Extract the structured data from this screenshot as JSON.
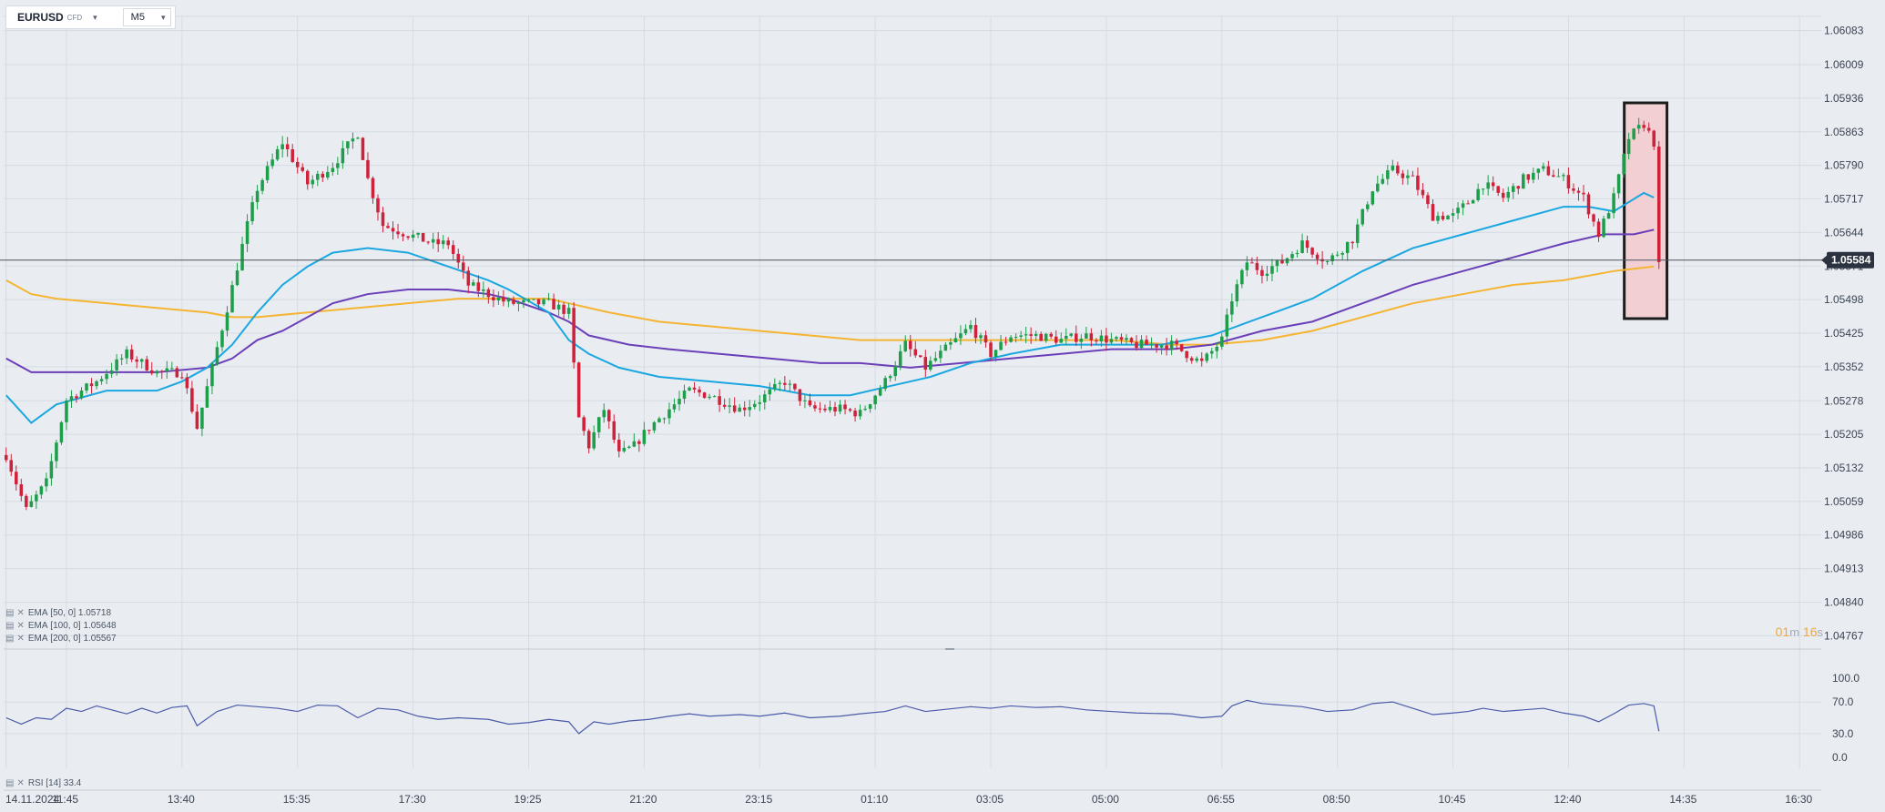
{
  "header": {
    "symbol": "EURUSD",
    "instrument_type": "CFD",
    "timeframe": "M5"
  },
  "indicators": [
    {
      "label": "EMA",
      "params": "[50, 0]",
      "value": "1.05718",
      "color": "#1aa7e0"
    },
    {
      "label": "EMA",
      "params": "[100, 0]",
      "value": "1.05648",
      "color": "#6b3fb8"
    },
    {
      "label": "EMA",
      "params": "[200, 0]",
      "value": "1.05567",
      "color": "#f5b431"
    }
  ],
  "rsi": {
    "label": "RSI",
    "params": "[14]",
    "value": "33.4",
    "color": "#4a5aa8"
  },
  "countdown": {
    "minutes": "01",
    "min_unit": "m",
    "seconds": "16",
    "sec_unit": "s"
  },
  "colors": {
    "up": "#1e9e4b",
    "down": "#d0213a",
    "highlight_fill": "#f1cfd2",
    "price_tag": "#2b3340"
  },
  "chart_data": {
    "type": "candlestick",
    "ylim": [
      1.0474,
      1.0611
    ],
    "price_ticks": [
      "1.06083",
      "1.06009",
      "1.05936",
      "1.05863",
      "1.05790",
      "1.05717",
      "1.05644",
      "1.05571",
      "1.05498",
      "1.05425",
      "1.05352",
      "1.05278",
      "1.05205",
      "1.05132",
      "1.05059",
      "1.04986",
      "1.04913",
      "1.04840",
      "1.04767"
    ],
    "current_price": "1.05584",
    "x_ticks": [
      {
        "label": "14.11.2024",
        "bar": 0
      },
      {
        "label": "11:45",
        "bar": 12
      },
      {
        "label": "13:40",
        "bar": 35
      },
      {
        "label": "15:35",
        "bar": 58
      },
      {
        "label": "17:30",
        "bar": 81
      },
      {
        "label": "19:25",
        "bar": 104
      },
      {
        "label": "21:20",
        "bar": 127
      },
      {
        "label": "23:15",
        "bar": 150
      },
      {
        "label": "01:10",
        "bar": 173
      },
      {
        "label": "03:05",
        "bar": 196
      },
      {
        "label": "05:00",
        "bar": 219
      },
      {
        "label": "06:55",
        "bar": 242
      },
      {
        "label": "08:50",
        "bar": 265
      },
      {
        "label": "10:45",
        "bar": 288
      },
      {
        "label": "12:40",
        "bar": 311
      },
      {
        "label": "14:35",
        "bar": 334
      },
      {
        "label": "16:30",
        "bar": 357
      }
    ],
    "total_slots": 360,
    "close_path": [
      [
        0,
        1.0516
      ],
      [
        4,
        1.0504
      ],
      [
        8,
        1.051
      ],
      [
        12,
        1.0528
      ],
      [
        18,
        1.0532
      ],
      [
        24,
        1.0538
      ],
      [
        30,
        1.0534
      ],
      [
        35,
        1.0534
      ],
      [
        38,
        1.0522
      ],
      [
        44,
        1.0548
      ],
      [
        48,
        1.0566
      ],
      [
        50,
        1.0574
      ],
      [
        55,
        1.0584
      ],
      [
        60,
        1.0575
      ],
      [
        65,
        1.0579
      ],
      [
        70,
        1.0586
      ],
      [
        72,
        1.0576
      ],
      [
        75,
        1.0566
      ],
      [
        80,
        1.0564
      ],
      [
        85,
        1.0562
      ],
      [
        88,
        1.0562
      ],
      [
        92,
        1.0553
      ],
      [
        100,
        1.0549
      ],
      [
        108,
        1.0549
      ],
      [
        112,
        1.0547
      ],
      [
        114,
        1.0524
      ],
      [
        116,
        1.0518
      ],
      [
        119,
        1.0526
      ],
      [
        122,
        1.0516
      ],
      [
        125,
        1.0518
      ],
      [
        128,
        1.0522
      ],
      [
        132,
        1.0526
      ],
      [
        136,
        1.053
      ],
      [
        140,
        1.0529
      ],
      [
        146,
        1.0526
      ],
      [
        150,
        1.0528
      ],
      [
        155,
        1.0532
      ],
      [
        160,
        1.0526
      ],
      [
        166,
        1.0526
      ],
      [
        170,
        1.0525
      ],
      [
        175,
        1.0532
      ],
      [
        179,
        1.054
      ],
      [
        183,
        1.0535
      ],
      [
        186,
        1.0538
      ],
      [
        192,
        1.0544
      ],
      [
        196,
        1.0538
      ],
      [
        200,
        1.0542
      ],
      [
        205,
        1.0542
      ],
      [
        210,
        1.0541
      ],
      [
        215,
        1.0542
      ],
      [
        220,
        1.0541
      ],
      [
        225,
        1.054
      ],
      [
        232,
        1.054
      ],
      [
        238,
        1.0536
      ],
      [
        242,
        1.0541
      ],
      [
        244,
        1.055
      ],
      [
        247,
        1.0558
      ],
      [
        250,
        1.0556
      ],
      [
        254,
        1.0558
      ],
      [
        258,
        1.0562
      ],
      [
        263,
        1.0558
      ],
      [
        268,
        1.0563
      ],
      [
        272,
        1.0574
      ],
      [
        276,
        1.0578
      ],
      [
        280,
        1.0576
      ],
      [
        284,
        1.0568
      ],
      [
        288,
        1.0568
      ],
      [
        291,
        1.0571
      ],
      [
        294,
        1.0575
      ],
      [
        298,
        1.0572
      ],
      [
        302,
        1.0576
      ],
      [
        306,
        1.0578
      ],
      [
        310,
        1.0576
      ],
      [
        314,
        1.0572
      ],
      [
        317,
        1.0564
      ],
      [
        320,
        1.0572
      ],
      [
        323,
        1.0585
      ],
      [
        326,
        1.0588
      ],
      [
        328,
        1.0584
      ],
      [
        329,
        1.0557
      ]
    ],
    "ema_paths": {
      "ema50": [
        [
          0,
          1.0529
        ],
        [
          5,
          1.0523
        ],
        [
          10,
          1.0527
        ],
        [
          20,
          1.053
        ],
        [
          30,
          1.053
        ],
        [
          35,
          1.0532
        ],
        [
          40,
          1.0535
        ],
        [
          45,
          1.054
        ],
        [
          50,
          1.0547
        ],
        [
          55,
          1.0553
        ],
        [
          60,
          1.0557
        ],
        [
          65,
          1.056
        ],
        [
          72,
          1.0561
        ],
        [
          80,
          1.056
        ],
        [
          88,
          1.0557
        ],
        [
          96,
          1.0554
        ],
        [
          100,
          1.0552
        ],
        [
          108,
          1.0547
        ],
        [
          112,
          1.0541
        ],
        [
          116,
          1.0538
        ],
        [
          122,
          1.0535
        ],
        [
          130,
          1.0533
        ],
        [
          140,
          1.0532
        ],
        [
          150,
          1.0531
        ],
        [
          160,
          1.0529
        ],
        [
          168,
          1.0529
        ],
        [
          176,
          1.0531
        ],
        [
          184,
          1.0533
        ],
        [
          192,
          1.0536
        ],
        [
          200,
          1.0538
        ],
        [
          210,
          1.054
        ],
        [
          220,
          1.054
        ],
        [
          230,
          1.054
        ],
        [
          240,
          1.0542
        ],
        [
          250,
          1.0546
        ],
        [
          260,
          1.055
        ],
        [
          270,
          1.0556
        ],
        [
          280,
          1.0561
        ],
        [
          290,
          1.0564
        ],
        [
          300,
          1.0567
        ],
        [
          310,
          1.057
        ],
        [
          315,
          1.057
        ],
        [
          320,
          1.0569
        ],
        [
          326,
          1.0573
        ],
        [
          328,
          1.0572
        ]
      ],
      "ema100": [
        [
          0,
          1.0537
        ],
        [
          5,
          1.0534
        ],
        [
          10,
          1.0534
        ],
        [
          20,
          1.0534
        ],
        [
          30,
          1.0534
        ],
        [
          40,
          1.0535
        ],
        [
          45,
          1.0537
        ],
        [
          50,
          1.0541
        ],
        [
          55,
          1.0543
        ],
        [
          60,
          1.0546
        ],
        [
          65,
          1.0549
        ],
        [
          72,
          1.0551
        ],
        [
          80,
          1.0552
        ],
        [
          88,
          1.0552
        ],
        [
          96,
          1.0551
        ],
        [
          100,
          1.055
        ],
        [
          108,
          1.0547
        ],
        [
          112,
          1.0545
        ],
        [
          116,
          1.0542
        ],
        [
          124,
          1.054
        ],
        [
          132,
          1.0539
        ],
        [
          142,
          1.0538
        ],
        [
          152,
          1.0537
        ],
        [
          162,
          1.0536
        ],
        [
          170,
          1.0536
        ],
        [
          180,
          1.0535
        ],
        [
          190,
          1.0536
        ],
        [
          200,
          1.0537
        ],
        [
          210,
          1.0538
        ],
        [
          220,
          1.0539
        ],
        [
          232,
          1.0539
        ],
        [
          240,
          1.054
        ],
        [
          250,
          1.0543
        ],
        [
          260,
          1.0545
        ],
        [
          270,
          1.0549
        ],
        [
          280,
          1.0553
        ],
        [
          290,
          1.0556
        ],
        [
          300,
          1.0559
        ],
        [
          310,
          1.0562
        ],
        [
          318,
          1.0564
        ],
        [
          324,
          1.0564
        ],
        [
          328,
          1.0565
        ]
      ],
      "ema200": [
        [
          0,
          1.0554
        ],
        [
          5,
          1.0551
        ],
        [
          10,
          1.055
        ],
        [
          20,
          1.0549
        ],
        [
          30,
          1.0548
        ],
        [
          40,
          1.0547
        ],
        [
          45,
          1.0546
        ],
        [
          50,
          1.0546
        ],
        [
          60,
          1.0547
        ],
        [
          70,
          1.0548
        ],
        [
          80,
          1.0549
        ],
        [
          90,
          1.055
        ],
        [
          100,
          1.055
        ],
        [
          108,
          1.055
        ],
        [
          112,
          1.0549
        ],
        [
          120,
          1.0547
        ],
        [
          130,
          1.0545
        ],
        [
          140,
          1.0544
        ],
        [
          150,
          1.0543
        ],
        [
          160,
          1.0542
        ],
        [
          170,
          1.0541
        ],
        [
          180,
          1.0541
        ],
        [
          190,
          1.0541
        ],
        [
          200,
          1.0541
        ],
        [
          210,
          1.0541
        ],
        [
          220,
          1.0541
        ],
        [
          232,
          1.054
        ],
        [
          240,
          1.054
        ],
        [
          250,
          1.0541
        ],
        [
          260,
          1.0543
        ],
        [
          270,
          1.0546
        ],
        [
          280,
          1.0549
        ],
        [
          290,
          1.0551
        ],
        [
          300,
          1.0553
        ],
        [
          310,
          1.0554
        ],
        [
          320,
          1.0556
        ],
        [
          328,
          1.0557
        ]
      ]
    },
    "rsi_path": [
      [
        0,
        50
      ],
      [
        3,
        42
      ],
      [
        6,
        50
      ],
      [
        9,
        48
      ],
      [
        12,
        62
      ],
      [
        15,
        58
      ],
      [
        18,
        65
      ],
      [
        21,
        60
      ],
      [
        24,
        55
      ],
      [
        27,
        62
      ],
      [
        30,
        56
      ],
      [
        33,
        63
      ],
      [
        36,
        65
      ],
      [
        38,
        40
      ],
      [
        42,
        58
      ],
      [
        46,
        66
      ],
      [
        50,
        64
      ],
      [
        54,
        62
      ],
      [
        58,
        58
      ],
      [
        62,
        66
      ],
      [
        66,
        65
      ],
      [
        70,
        50
      ],
      [
        74,
        62
      ],
      [
        78,
        60
      ],
      [
        82,
        52
      ],
      [
        86,
        48
      ],
      [
        90,
        50
      ],
      [
        96,
        48
      ],
      [
        100,
        42
      ],
      [
        104,
        44
      ],
      [
        108,
        48
      ],
      [
        112,
        45
      ],
      [
        114,
        30
      ],
      [
        117,
        45
      ],
      [
        120,
        42
      ],
      [
        124,
        46
      ],
      [
        128,
        48
      ],
      [
        132,
        52
      ],
      [
        136,
        55
      ],
      [
        140,
        52
      ],
      [
        146,
        54
      ],
      [
        150,
        52
      ],
      [
        155,
        56
      ],
      [
        160,
        50
      ],
      [
        166,
        52
      ],
      [
        170,
        55
      ],
      [
        175,
        58
      ],
      [
        179,
        65
      ],
      [
        183,
        58
      ],
      [
        186,
        60
      ],
      [
        192,
        64
      ],
      [
        196,
        62
      ],
      [
        200,
        65
      ],
      [
        205,
        63
      ],
      [
        210,
        64
      ],
      [
        215,
        60
      ],
      [
        220,
        58
      ],
      [
        225,
        56
      ],
      [
        232,
        55
      ],
      [
        238,
        50
      ],
      [
        242,
        52
      ],
      [
        244,
        65
      ],
      [
        247,
        72
      ],
      [
        250,
        68
      ],
      [
        254,
        66
      ],
      [
        258,
        64
      ],
      [
        263,
        58
      ],
      [
        268,
        60
      ],
      [
        272,
        68
      ],
      [
        276,
        70
      ],
      [
        280,
        62
      ],
      [
        284,
        54
      ],
      [
        288,
        56
      ],
      [
        291,
        58
      ],
      [
        294,
        62
      ],
      [
        298,
        58
      ],
      [
        302,
        60
      ],
      [
        306,
        62
      ],
      [
        310,
        56
      ],
      [
        314,
        52
      ],
      [
        317,
        45
      ],
      [
        320,
        55
      ],
      [
        323,
        66
      ],
      [
        326,
        68
      ],
      [
        328,
        65
      ],
      [
        329,
        33
      ]
    ],
    "rsi_ticks": [
      "100.0",
      "70.0",
      "30.0",
      "0.0"
    ],
    "highlight": {
      "from_bar": 323,
      "to_bar": 329
    }
  }
}
